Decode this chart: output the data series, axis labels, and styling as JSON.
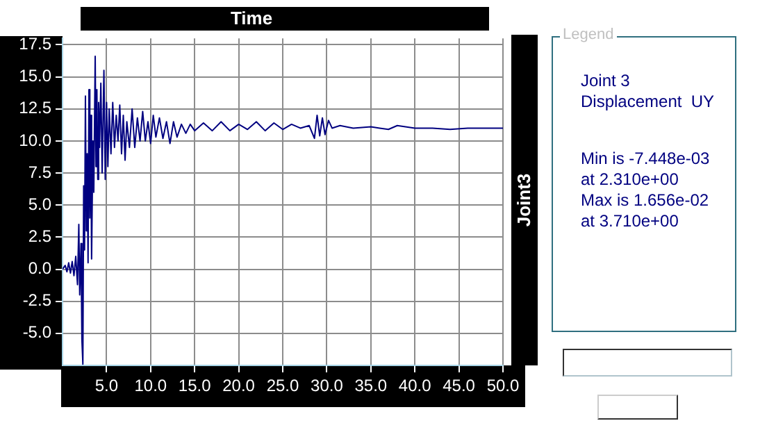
{
  "chart_data": {
    "type": "line",
    "title": "Time",
    "ylabel": "Joint3",
    "legend_title": "Legend",
    "legend": "right",
    "xlim": [
      0,
      50
    ],
    "ylim": [
      -7.5,
      18
    ],
    "xticks": [
      {
        "value": 5,
        "label": "5.0"
      },
      {
        "value": 10,
        "label": "10.0"
      },
      {
        "value": 15,
        "label": "15.0"
      },
      {
        "value": 20,
        "label": "20.0"
      },
      {
        "value": 25,
        "label": "25.0"
      },
      {
        "value": 30,
        "label": "30.0"
      },
      {
        "value": 35,
        "label": "35.0"
      },
      {
        "value": 40,
        "label": "40.0"
      },
      {
        "value": 45,
        "label": "45.0"
      },
      {
        "value": 50,
        "label": "50.0"
      }
    ],
    "yticks": [
      {
        "value": -5,
        "label": "-5.0"
      },
      -2.5,
      {
        "value": 0,
        "label": "0.0"
      },
      2.5,
      {
        "value": 5,
        "label": "5.0"
      },
      7.5,
      {
        "value": 10,
        "label": "10.0"
      },
      12.5,
      {
        "value": 15,
        "label": "15.0"
      },
      17.5
    ],
    "grid": true,
    "marker": "none",
    "line_style": "solid",
    "annotations": [
      "Min is -7.448e-03",
      "at 2.310e+00",
      "Max is 1.656e-02",
      "at 3.710e+00"
    ],
    "series": [
      {
        "name": "Joint 3 Displacement  UY",
        "color": "#000080",
        "x": [
          0,
          0.3,
          0.5,
          0.7,
          0.9,
          1.1,
          1.3,
          1.5,
          1.7,
          1.85,
          1.95,
          2.1,
          2.2,
          2.31,
          2.4,
          2.5,
          2.6,
          2.7,
          2.8,
          2.9,
          3.0,
          3.1,
          3.2,
          3.3,
          3.45,
          3.55,
          3.71,
          3.8,
          3.9,
          4.0,
          4.1,
          4.2,
          4.35,
          4.5,
          4.7,
          4.85,
          5.0,
          5.15,
          5.3,
          5.5,
          5.7,
          5.9,
          6.1,
          6.3,
          6.5,
          6.7,
          6.9,
          7.1,
          7.3,
          7.6,
          7.9,
          8.2,
          8.5,
          8.8,
          9.1,
          9.4,
          9.7,
          10.0,
          10.3,
          10.6,
          11.0,
          11.4,
          11.8,
          12.2,
          12.6,
          13.0,
          13.5,
          14.0,
          14.5,
          15,
          16,
          17,
          18,
          19,
          20,
          21,
          22,
          23,
          24,
          25,
          26,
          27,
          28,
          28.6,
          28.9,
          29.2,
          29.5,
          29.8,
          30.2,
          30.6,
          31.5,
          33,
          35,
          36,
          37,
          38,
          40,
          42,
          44,
          46,
          48,
          50
        ],
        "values": [
          0,
          0.3,
          -0.2,
          0.5,
          -0.3,
          0.6,
          -0.5,
          1.0,
          -1.2,
          3.5,
          -2.0,
          2.0,
          -5.5,
          -7.4,
          6.5,
          1.5,
          13.5,
          3.0,
          9.0,
          0.5,
          14.0,
          4.0,
          12.0,
          0.8,
          10.0,
          6.0,
          16.6,
          8.0,
          14.0,
          7.0,
          13.0,
          9.5,
          14.5,
          7.5,
          15.5,
          7.0,
          13.0,
          8.0,
          12.5,
          9.0,
          13.0,
          9.5,
          12.0,
          10.0,
          12.8,
          9.0,
          12.0,
          8.5,
          11.5,
          9.5,
          12.5,
          9.5,
          11.8,
          10.0,
          12.3,
          10.0,
          11.5,
          9.8,
          12.0,
          10.3,
          11.8,
          10.2,
          11.5,
          9.8,
          11.5,
          10.3,
          11.3,
          10.6,
          11.3,
          10.8,
          11.4,
          10.8,
          11.5,
          10.8,
          11.3,
          10.9,
          11.5,
          10.8,
          11.4,
          10.9,
          11.3,
          11.0,
          11.2,
          10.2,
          12.0,
          10.4,
          11.8,
          10.5,
          11.6,
          11.0,
          11.2,
          11.0,
          11.1,
          11.0,
          10.9,
          11.2,
          11.0,
          11.0,
          10.9,
          11.0,
          11.0,
          11.0
        ]
      }
    ]
  }
}
